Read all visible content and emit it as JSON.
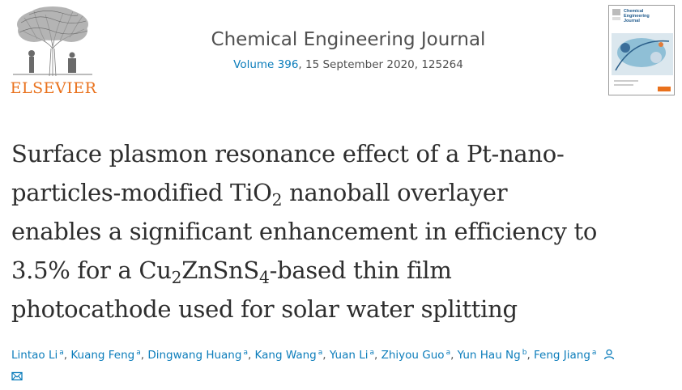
{
  "publisher": {
    "name": "ELSEVIER"
  },
  "journal": {
    "title": "Chemical Engineering Journal",
    "volume_link": "Volume 396",
    "issue_rest": ", 15 September 2020, 125264"
  },
  "cover": {
    "title_line1": "Chemical",
    "title_line2": "Engineering",
    "title_line3": "Journal"
  },
  "article": {
    "title_line1": "Surface plasmon resonance effect of a Pt-nano-",
    "title_line2_a": "particles-modified TiO",
    "title_line2_sub": "2",
    "title_line2_b": " nanoball overlayer",
    "title_line3": "enables a significant enhancement in efficiency to",
    "title_line4_a": "3.5% for a Cu",
    "title_line4_sub1": "2",
    "title_line4_b": "ZnSnS",
    "title_line4_sub2": "4",
    "title_line4_c": "-based thin film",
    "title_line5": "photocathode used for solar water splitting"
  },
  "authors": [
    {
      "name": "Lintao Li",
      "aff": "a"
    },
    {
      "name": "Kuang Feng",
      "aff": "a"
    },
    {
      "name": "Dingwang Huang",
      "aff": "a"
    },
    {
      "name": "Kang Wang",
      "aff": "a"
    },
    {
      "name": "Yuan Li",
      "aff": "a"
    },
    {
      "name": "Zhiyou Guo",
      "aff": "a"
    },
    {
      "name": "Yun Hau Ng",
      "aff": "b"
    },
    {
      "name": "Feng Jiang",
      "aff": "a"
    }
  ],
  "separator": ",",
  "icons": {
    "author": "person-icon",
    "mail": "mail-icon"
  },
  "colors": {
    "link": "#0c7dbb",
    "publisher_orange": "#e9711c",
    "text": "#2e2e2e"
  }
}
